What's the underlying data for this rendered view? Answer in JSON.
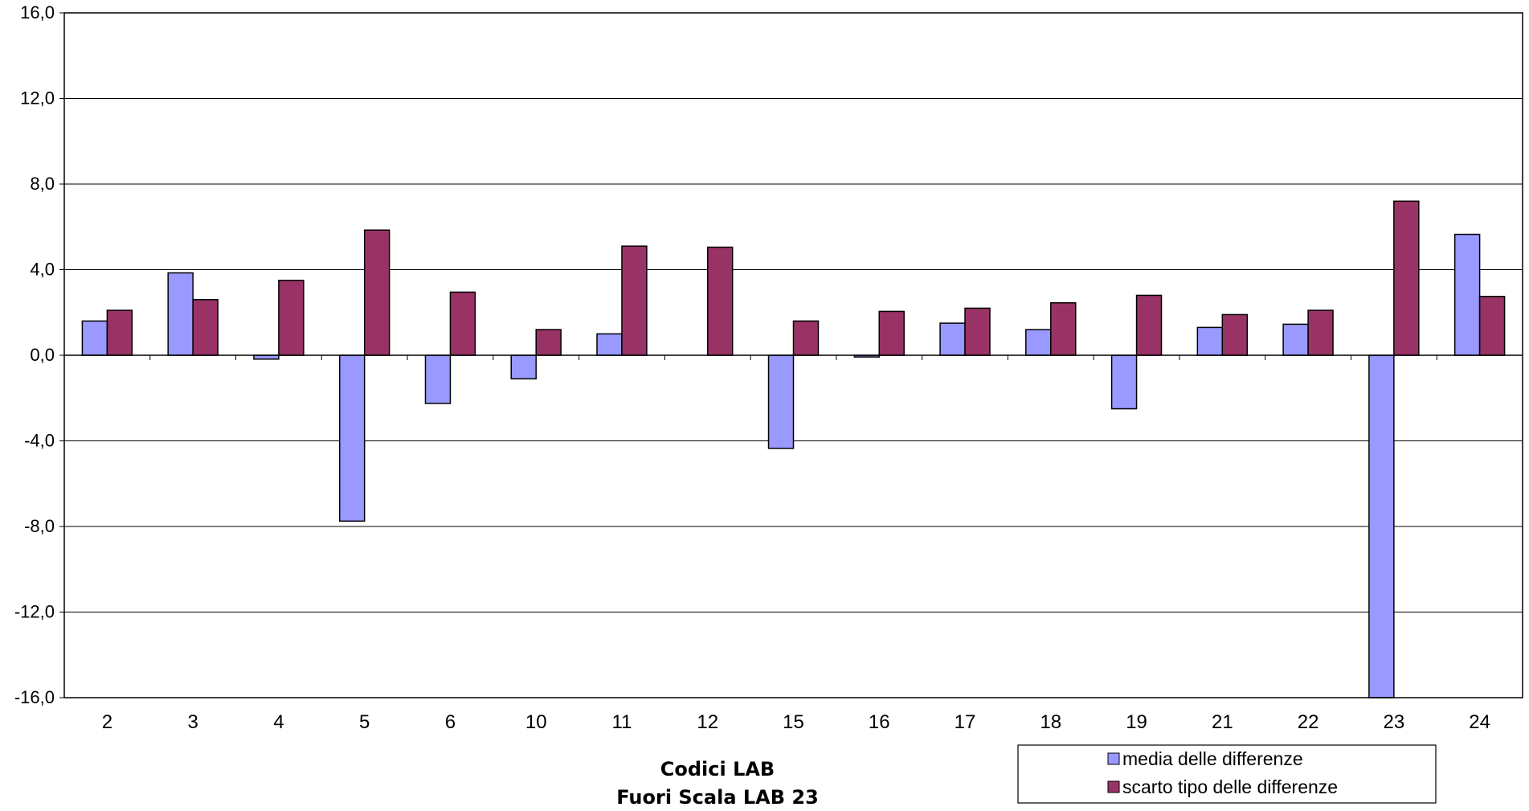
{
  "chart_data": {
    "type": "bar",
    "categories": [
      "2",
      "3",
      "4",
      "5",
      "6",
      "10",
      "11",
      "12",
      "15",
      "16",
      "17",
      "18",
      "19",
      "21",
      "22",
      "23",
      "24"
    ],
    "series": [
      {
        "name": "media delle differenze",
        "color": "#9999ff",
        "values": [
          1.6,
          3.85,
          -0.18,
          -7.75,
          -2.25,
          -1.1,
          1.0,
          0.0,
          -4.35,
          -0.08,
          1.5,
          1.2,
          -2.5,
          1.3,
          1.45,
          -16.0,
          5.65
        ]
      },
      {
        "name": "scarto tipo delle differenze",
        "color": "#993366",
        "values": [
          2.1,
          2.6,
          3.5,
          5.85,
          2.95,
          1.2,
          5.1,
          5.05,
          1.6,
          2.05,
          2.2,
          2.45,
          2.8,
          1.9,
          2.1,
          7.2,
          2.75
        ]
      }
    ],
    "yticks": [
      "16,0",
      "12,0",
      "8,0",
      "4,0",
      "0,0",
      "-4,0",
      "-8,0",
      "-12,0",
      "-16,0"
    ],
    "ylim": [
      -16,
      16
    ],
    "xlabel": "Codici LAB",
    "xlabel_note": "Fuori Scala LAB 23",
    "grid": true,
    "legend_position": "bottom-right"
  }
}
